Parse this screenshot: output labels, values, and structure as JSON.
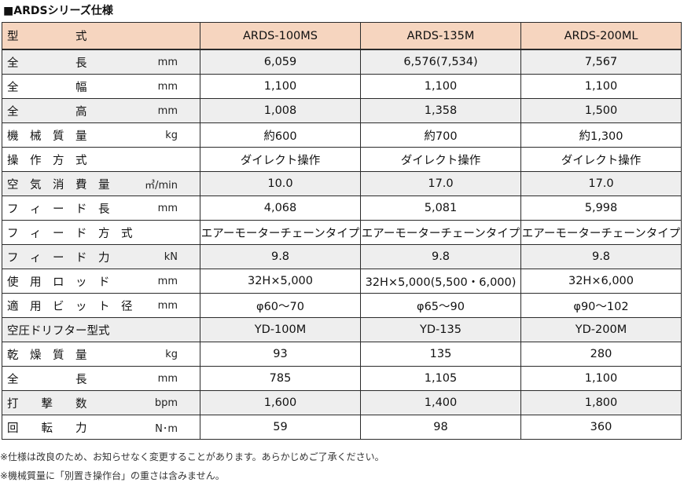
{
  "title": "■ARDSシリーズ仕様",
  "header": {
    "label": "型　　　　　式",
    "models": [
      "ARDS-100MS",
      "ARDS-135M",
      "ARDS-200ML"
    ]
  },
  "rows": [
    {
      "label": "全　　　　　長",
      "unit": "mm",
      "values": [
        "6,059",
        "6,576(7,534)",
        "7,567"
      ]
    },
    {
      "label": "全　　　　　幅",
      "unit": "mm",
      "values": [
        "1,100",
        "1,100",
        "1,100"
      ]
    },
    {
      "label": "全　　　　　高",
      "unit": "mm",
      "values": [
        "1,008",
        "1,358",
        "1,500"
      ]
    },
    {
      "label": "機　械　質　量",
      "unit": "kg",
      "values": [
        "約600",
        "約700",
        "約1,300"
      ]
    },
    {
      "label": "操　作　方　式",
      "unit": "",
      "values": [
        "ダイレクト操作",
        "ダイレクト操作",
        "ダイレクト操作"
      ]
    },
    {
      "label": "空　気　消　費　量",
      "unit": "㎥/min",
      "values": [
        "10.0",
        "17.0",
        "17.0"
      ]
    },
    {
      "label": "フ　ィ　ー　ド　長",
      "unit": "mm",
      "values": [
        "4,068",
        "5,081",
        "5,998"
      ]
    },
    {
      "label": "フ　ィ　ー　ド　方　式",
      "unit": "",
      "values": [
        "エアーモーターチェーンタイプ",
        "エアーモーターチェーンタイプ",
        "エアーモーターチェーンタイプ"
      ]
    },
    {
      "label": "フ　ィ　ー　ド　力",
      "unit": "kN",
      "values": [
        "9.8",
        "9.8",
        "9.8"
      ]
    },
    {
      "label": "使　用　ロ　ッ　ド",
      "unit": "mm",
      "values": [
        "32H×5,000",
        "32H×5,000(5,500・6,000)",
        "32H×6,000"
      ]
    },
    {
      "label": "適　用　ビ　ッ　ト　径",
      "unit": "mm",
      "values": [
        "φ60～70",
        "φ65～90",
        "φ90～102"
      ]
    },
    {
      "label": "空圧ドリフター型式",
      "unit": "",
      "values": [
        "YD-100M",
        "YD-135",
        "YD-200M"
      ]
    },
    {
      "label": "乾　燥　質　量",
      "unit": "kg",
      "values": [
        "93",
        "135",
        "280"
      ]
    },
    {
      "label": "全　　　　　長",
      "unit": "mm",
      "values": [
        "785",
        "1,105",
        "1,100"
      ]
    },
    {
      "label": "打　　撃　　数",
      "unit": "bpm",
      "values": [
        "1,600",
        "1,400",
        "1,800"
      ]
    },
    {
      "label": "回　　転　　力",
      "unit": "N･m",
      "values": [
        "59",
        "98",
        "360"
      ]
    }
  ],
  "notes": [
    "※仕様は改良のため、お知らせなく変更することがあります。あらかじめご了承ください。",
    "※機械質量に「別置き操作台」の重さは含みません。"
  ]
}
